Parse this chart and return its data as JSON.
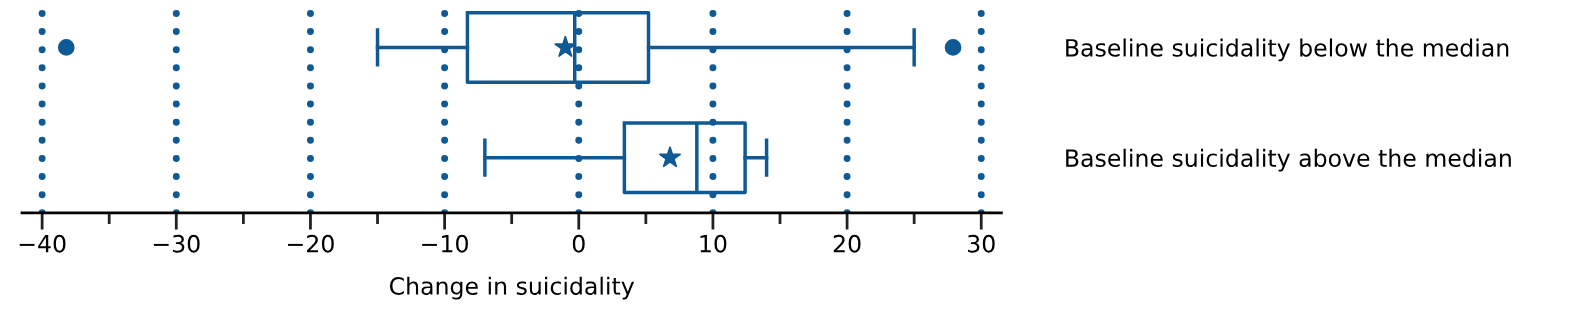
{
  "chart_data": {
    "type": "box",
    "orientation": "horizontal",
    "xlabel": "Change in suicidality",
    "categories": [
      "Baseline suicidality below the median",
      "Baseline suicidality above the median"
    ],
    "color": "#0f5a94",
    "boxes": [
      {
        "low": -15,
        "q1": -8.3,
        "median": -0.3,
        "q3": 5.2,
        "high": 25,
        "mean": -1,
        "outliers": [
          -38.2,
          27.9
        ]
      },
      {
        "low": -7,
        "q1": 3.4,
        "median": 8.8,
        "q3": 12.4,
        "high": 14,
        "mean": 6.8
      }
    ],
    "xlim": [
      -41.5,
      31.5
    ],
    "xticks": [
      {
        "value": -40,
        "label": "−40"
      },
      {
        "value": -35,
        "label": null
      },
      {
        "value": -30,
        "label": "−30"
      },
      {
        "value": -25,
        "label": null
      },
      {
        "value": -20,
        "label": "−20"
      },
      {
        "value": -15,
        "label": null
      },
      {
        "value": -10,
        "label": "−10"
      },
      {
        "value": -5,
        "label": null
      },
      0,
      {
        "value": 5,
        "label": null
      },
      10,
      {
        "value": 15,
        "label": null
      },
      20,
      {
        "value": 25,
        "label": null
      },
      30
    ],
    "grid": "x",
    "line_style": "dotted"
  }
}
